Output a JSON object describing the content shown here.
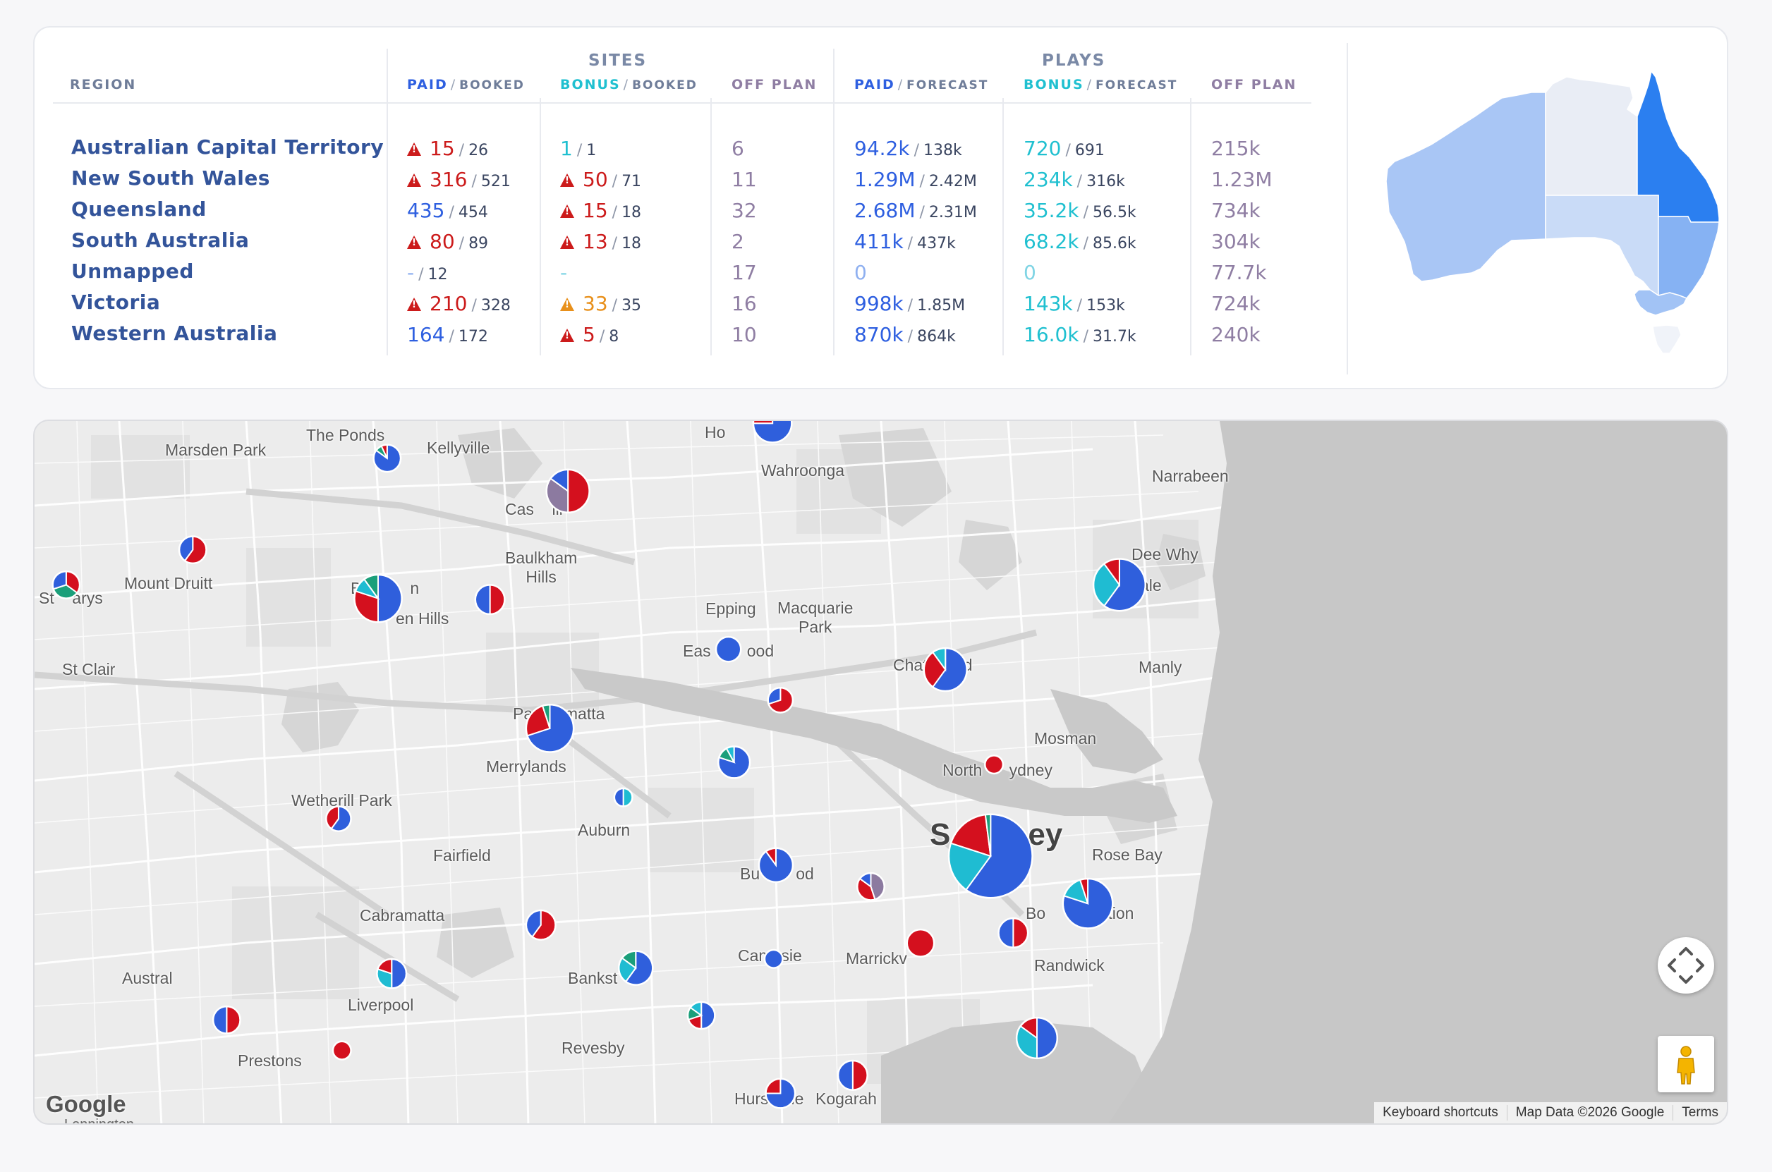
{
  "table": {
    "group_sites": "SITES",
    "group_plays": "PLAYS",
    "headers": {
      "region": "REGION",
      "sites_paid": "PAID",
      "sites_paid_sub": "BOOKED",
      "sites_bonus": "BONUS",
      "sites_bonus_sub": "BOOKED",
      "sites_off": "OFF PLAN",
      "plays_paid": "PAID",
      "plays_paid_sub": "FORECAST",
      "plays_bonus": "BONUS",
      "plays_bonus_sub": "FORECAST",
      "plays_off": "OFF PLAN",
      "separator": "/"
    },
    "rows": [
      {
        "region": "Australian Capital Territory",
        "sites_paid": "15",
        "sites_paid_den": "26",
        "sites_paid_status": "warn-red",
        "sites_bonus": "1",
        "sites_bonus_den": "1",
        "sites_bonus_status": "ok",
        "sites_off": "6",
        "plays_paid": "94.2k",
        "plays_paid_den": "138k",
        "plays_bonus": "720",
        "plays_bonus_den": "691",
        "plays_off": "215k"
      },
      {
        "region": "New South Wales",
        "sites_paid": "316",
        "sites_paid_den": "521",
        "sites_paid_status": "warn-red",
        "sites_bonus": "50",
        "sites_bonus_den": "71",
        "sites_bonus_status": "warn-red",
        "sites_off": "11",
        "plays_paid": "1.29M",
        "plays_paid_den": "2.42M",
        "plays_bonus": "234k",
        "plays_bonus_den": "316k",
        "plays_off": "1.23M"
      },
      {
        "region": "Queensland",
        "sites_paid": "435",
        "sites_paid_den": "454",
        "sites_paid_status": "ok",
        "sites_bonus": "15",
        "sites_bonus_den": "18",
        "sites_bonus_status": "warn-red",
        "sites_off": "32",
        "plays_paid": "2.68M",
        "plays_paid_den": "2.31M",
        "plays_bonus": "35.2k",
        "plays_bonus_den": "56.5k",
        "plays_off": "734k"
      },
      {
        "region": "South Australia",
        "sites_paid": "80",
        "sites_paid_den": "89",
        "sites_paid_status": "warn-red",
        "sites_bonus": "13",
        "sites_bonus_den": "18",
        "sites_bonus_status": "warn-red",
        "sites_off": "2",
        "plays_paid": "411k",
        "plays_paid_den": "437k",
        "plays_bonus": "68.2k",
        "plays_bonus_den": "85.6k",
        "plays_off": "304k"
      },
      {
        "region": "Unmapped",
        "sites_paid": "-",
        "sites_paid_den": "12",
        "sites_paid_status": "none",
        "sites_bonus": "-",
        "sites_bonus_den": "",
        "sites_bonus_status": "none",
        "sites_off": "17",
        "plays_paid": "0",
        "plays_paid_den": "",
        "plays_bonus": "0",
        "plays_bonus_den": "",
        "plays_off": "77.7k"
      },
      {
        "region": "Victoria",
        "sites_paid": "210",
        "sites_paid_den": "328",
        "sites_paid_status": "warn-red",
        "sites_bonus": "33",
        "sites_bonus_den": "35",
        "sites_bonus_status": "warn-orange",
        "sites_off": "16",
        "plays_paid": "998k",
        "plays_paid_den": "1.85M",
        "plays_bonus": "143k",
        "plays_bonus_den": "153k",
        "plays_off": "724k"
      },
      {
        "region": "Western Australia",
        "sites_paid": "164",
        "sites_paid_den": "172",
        "sites_paid_status": "ok",
        "sites_bonus": "5",
        "sites_bonus_den": "8",
        "sites_bonus_status": "warn-red",
        "sites_off": "10",
        "plays_paid": "870k",
        "plays_paid_den": "864k",
        "plays_bonus": "16.0k",
        "plays_bonus_den": "31.7k",
        "plays_off": "240k"
      }
    ]
  },
  "mini_map": {
    "states": [
      {
        "name": "WA",
        "color": "#a9c6f5"
      },
      {
        "name": "NT",
        "color": "#e9edf5"
      },
      {
        "name": "QLD",
        "color": "#2b7ff0"
      },
      {
        "name": "SA",
        "color": "#c9dbf7"
      },
      {
        "name": "NSW",
        "color": "#86b2f3"
      },
      {
        "name": "VIC",
        "color": "#a2c3f5"
      },
      {
        "name": "TAS",
        "color": "#f0f3f9"
      }
    ]
  },
  "map": {
    "colors": {
      "paid": "#2f5fdc",
      "bonus": "#1fbcd2",
      "off": "#8c7aa0",
      "warn": "#d4101e",
      "teal_alt": "#1b9f7a"
    },
    "labels": [
      {
        "id": "marsden-park",
        "text": "Marsden Park"
      },
      {
        "id": "the-ponds",
        "text": "The Ponds"
      },
      {
        "id": "kellyville",
        "text": "Kellyville"
      },
      {
        "id": "castle-hill",
        "text": "Cas    ill"
      },
      {
        "id": "hornsby",
        "text": "Ho"
      },
      {
        "id": "wahroonga",
        "text": "Wahroonga"
      },
      {
        "id": "narrabeen",
        "text": "Narrabeen"
      },
      {
        "id": "dee-why",
        "text": "Dee Why"
      },
      {
        "id": "brookvale",
        "text": "ale"
      },
      {
        "id": "mount-druitt",
        "text": "Mount Druitt"
      },
      {
        "id": "st-marys",
        "text": "St    arys"
      },
      {
        "id": "blacktown",
        "text": "Bla        n"
      },
      {
        "id": "seven-hills",
        "text": "en Hills"
      },
      {
        "id": "baulkham-hills",
        "text": "Baulkham\nHills"
      },
      {
        "id": "epping",
        "text": "Epping"
      },
      {
        "id": "macquarie-park",
        "text": "Macquarie\nPark"
      },
      {
        "id": "eastwood",
        "text": "Eas        ood"
      },
      {
        "id": "chatswood",
        "text": "Chat        d"
      },
      {
        "id": "manly",
        "text": "Manly"
      },
      {
        "id": "st-clair",
        "text": "St Clair"
      },
      {
        "id": "parramatta",
        "text": "Pa       matta"
      },
      {
        "id": "merrylands",
        "text": "Merrylands"
      },
      {
        "id": "mosman",
        "text": "Mosman"
      },
      {
        "id": "north-sydney",
        "text": "North      ydney"
      },
      {
        "id": "wetherill-park",
        "text": "Wetherill Park"
      },
      {
        "id": "auburn",
        "text": "Auburn"
      },
      {
        "id": "fairfield",
        "text": "Fairfield"
      },
      {
        "id": "sydney",
        "text": "S         ey"
      },
      {
        "id": "rose-bay",
        "text": "Rose Bay"
      },
      {
        "id": "burwood",
        "text": "Bu        od"
      },
      {
        "id": "bondi-junction",
        "text": "Bo            ction"
      },
      {
        "id": "cabramatta",
        "text": "Cabramatta"
      },
      {
        "id": "randwick",
        "text": "Randwick"
      },
      {
        "id": "campsie",
        "text": "Campsie"
      },
      {
        "id": "marrickville",
        "text": "Marrickv"
      },
      {
        "id": "austral",
        "text": "Austral"
      },
      {
        "id": "liverpool",
        "text": "Liverpool"
      },
      {
        "id": "bankstown",
        "text": "Bankst"
      },
      {
        "id": "revesby",
        "text": "Revesby"
      },
      {
        "id": "prestons",
        "text": "Prestons"
      },
      {
        "id": "hurstville",
        "text": "Hurs     ie"
      },
      {
        "id": "kogarah",
        "text": "Kogarah"
      }
    ],
    "google_logo": "Google",
    "cut_label": "Lennington",
    "attribution": {
      "keyboard": "Keyboard shortcuts",
      "data": "Map Data ©2026 Google",
      "terms": "Terms"
    },
    "pies": [
      {
        "id": "pie-the-ponds",
        "slices": [
          [
            "paid",
            0.85
          ],
          [
            "teal_alt",
            0.08
          ],
          [
            "warn",
            0.07
          ]
        ]
      },
      {
        "id": "pie-castle-hill",
        "slices": [
          [
            "warn",
            0.5
          ],
          [
            "off",
            0.35
          ],
          [
            "paid",
            0.15
          ]
        ]
      },
      {
        "id": "pie-hornsby",
        "slices": [
          [
            "paid",
            0.75
          ],
          [
            "warn",
            0.25
          ]
        ]
      },
      {
        "id": "pie-mount-druitt",
        "slices": [
          [
            "warn",
            0.6
          ],
          [
            "paid",
            0.4
          ]
        ]
      },
      {
        "id": "pie-st-marys",
        "slices": [
          [
            "warn",
            0.35
          ],
          [
            "teal_alt",
            0.35
          ],
          [
            "paid",
            0.3
          ]
        ]
      },
      {
        "id": "pie-blacktown",
        "slices": [
          [
            "paid",
            0.5
          ],
          [
            "warn",
            0.3
          ],
          [
            "bonus",
            0.1
          ],
          [
            "teal_alt",
            0.1
          ]
        ]
      },
      {
        "id": "pie-baulkham",
        "slices": [
          [
            "warn",
            0.5
          ],
          [
            "paid",
            0.5
          ]
        ]
      },
      {
        "id": "pie-eastwood",
        "slices": [
          [
            "paid",
            1.0
          ]
        ]
      },
      {
        "id": "pie-dee-why",
        "slices": [
          [
            "paid",
            0.6
          ],
          [
            "bonus",
            0.3
          ],
          [
            "warn",
            0.1
          ]
        ]
      },
      {
        "id": "pie-chatswood",
        "slices": [
          [
            "paid",
            0.6
          ],
          [
            "warn",
            0.3
          ],
          [
            "bonus",
            0.1
          ]
        ]
      },
      {
        "id": "pie-ryde",
        "slices": [
          [
            "warn",
            0.7
          ],
          [
            "paid",
            0.3
          ]
        ]
      },
      {
        "id": "pie-parramatta",
        "slices": [
          [
            "paid",
            0.7
          ],
          [
            "warn",
            0.25
          ],
          [
            "teal_alt",
            0.05
          ]
        ]
      },
      {
        "id": "pie-gladesville",
        "slices": [
          [
            "paid",
            0.8
          ],
          [
            "teal_alt",
            0.12
          ],
          [
            "bonus",
            0.08
          ]
        ]
      },
      {
        "id": "pie-north-sydney",
        "slices": [
          [
            "warn",
            1.0
          ]
        ]
      },
      {
        "id": "pie-auburn",
        "slices": [
          [
            "bonus",
            0.5
          ],
          [
            "paid",
            0.5
          ]
        ]
      },
      {
        "id": "pie-wetherill",
        "slices": [
          [
            "paid",
            0.6
          ],
          [
            "warn",
            0.4
          ]
        ]
      },
      {
        "id": "pie-sydney",
        "slices": [
          [
            "paid",
            0.6
          ],
          [
            "bonus",
            0.2
          ],
          [
            "warn",
            0.18
          ],
          [
            "teal_alt",
            0.02
          ]
        ]
      },
      {
        "id": "pie-burwood",
        "slices": [
          [
            "paid",
            0.9
          ],
          [
            "warn",
            0.1
          ]
        ]
      },
      {
        "id": "pie-leichhardt",
        "slices": [
          [
            "off",
            0.45
          ],
          [
            "warn",
            0.4
          ],
          [
            "paid",
            0.15
          ]
        ]
      },
      {
        "id": "pie-bondi-junction",
        "slices": [
          [
            "paid",
            0.8
          ],
          [
            "bonus",
            0.15
          ],
          [
            "warn",
            0.05
          ]
        ]
      },
      {
        "id": "pie-paddington",
        "slices": [
          [
            "warn",
            0.5
          ],
          [
            "paid",
            0.5
          ]
        ]
      },
      {
        "id": "pie-cabramatta",
        "slices": [
          [
            "warn",
            0.6
          ],
          [
            "paid",
            0.4
          ]
        ]
      },
      {
        "id": "pie-campsie",
        "slices": [
          [
            "paid",
            1.0
          ]
        ]
      },
      {
        "id": "pie-marrickville",
        "slices": [
          [
            "warn",
            1.0
          ]
        ]
      },
      {
        "id": "pie-liverpool",
        "slices": [
          [
            "paid",
            0.5
          ],
          [
            "bonus",
            0.3
          ],
          [
            "warn",
            0.2
          ]
        ]
      },
      {
        "id": "pie-bankstown",
        "slices": [
          [
            "paid",
            0.6
          ],
          [
            "bonus",
            0.25
          ],
          [
            "teal_alt",
            0.15
          ]
        ]
      },
      {
        "id": "pie-padstow",
        "slices": [
          [
            "paid",
            0.5
          ],
          [
            "warn",
            0.2
          ],
          [
            "teal_alt",
            0.15
          ],
          [
            "bonus",
            0.15
          ]
        ]
      },
      {
        "id": "pie-maroubra",
        "slices": [
          [
            "paid",
            0.5
          ],
          [
            "bonus",
            0.35
          ],
          [
            "warn",
            0.15
          ]
        ]
      },
      {
        "id": "pie-prestons-north",
        "slices": [
          [
            "warn",
            0.5
          ],
          [
            "paid",
            0.5
          ]
        ]
      },
      {
        "id": "pie-prestons",
        "slices": [
          [
            "warn",
            1.0
          ]
        ]
      },
      {
        "id": "pie-hurstville",
        "slices": [
          [
            "paid",
            0.75
          ],
          [
            "warn",
            0.25
          ]
        ]
      },
      {
        "id": "pie-kogarah",
        "slices": [
          [
            "warn",
            0.5
          ],
          [
            "paid",
            0.5
          ]
        ]
      }
    ]
  }
}
